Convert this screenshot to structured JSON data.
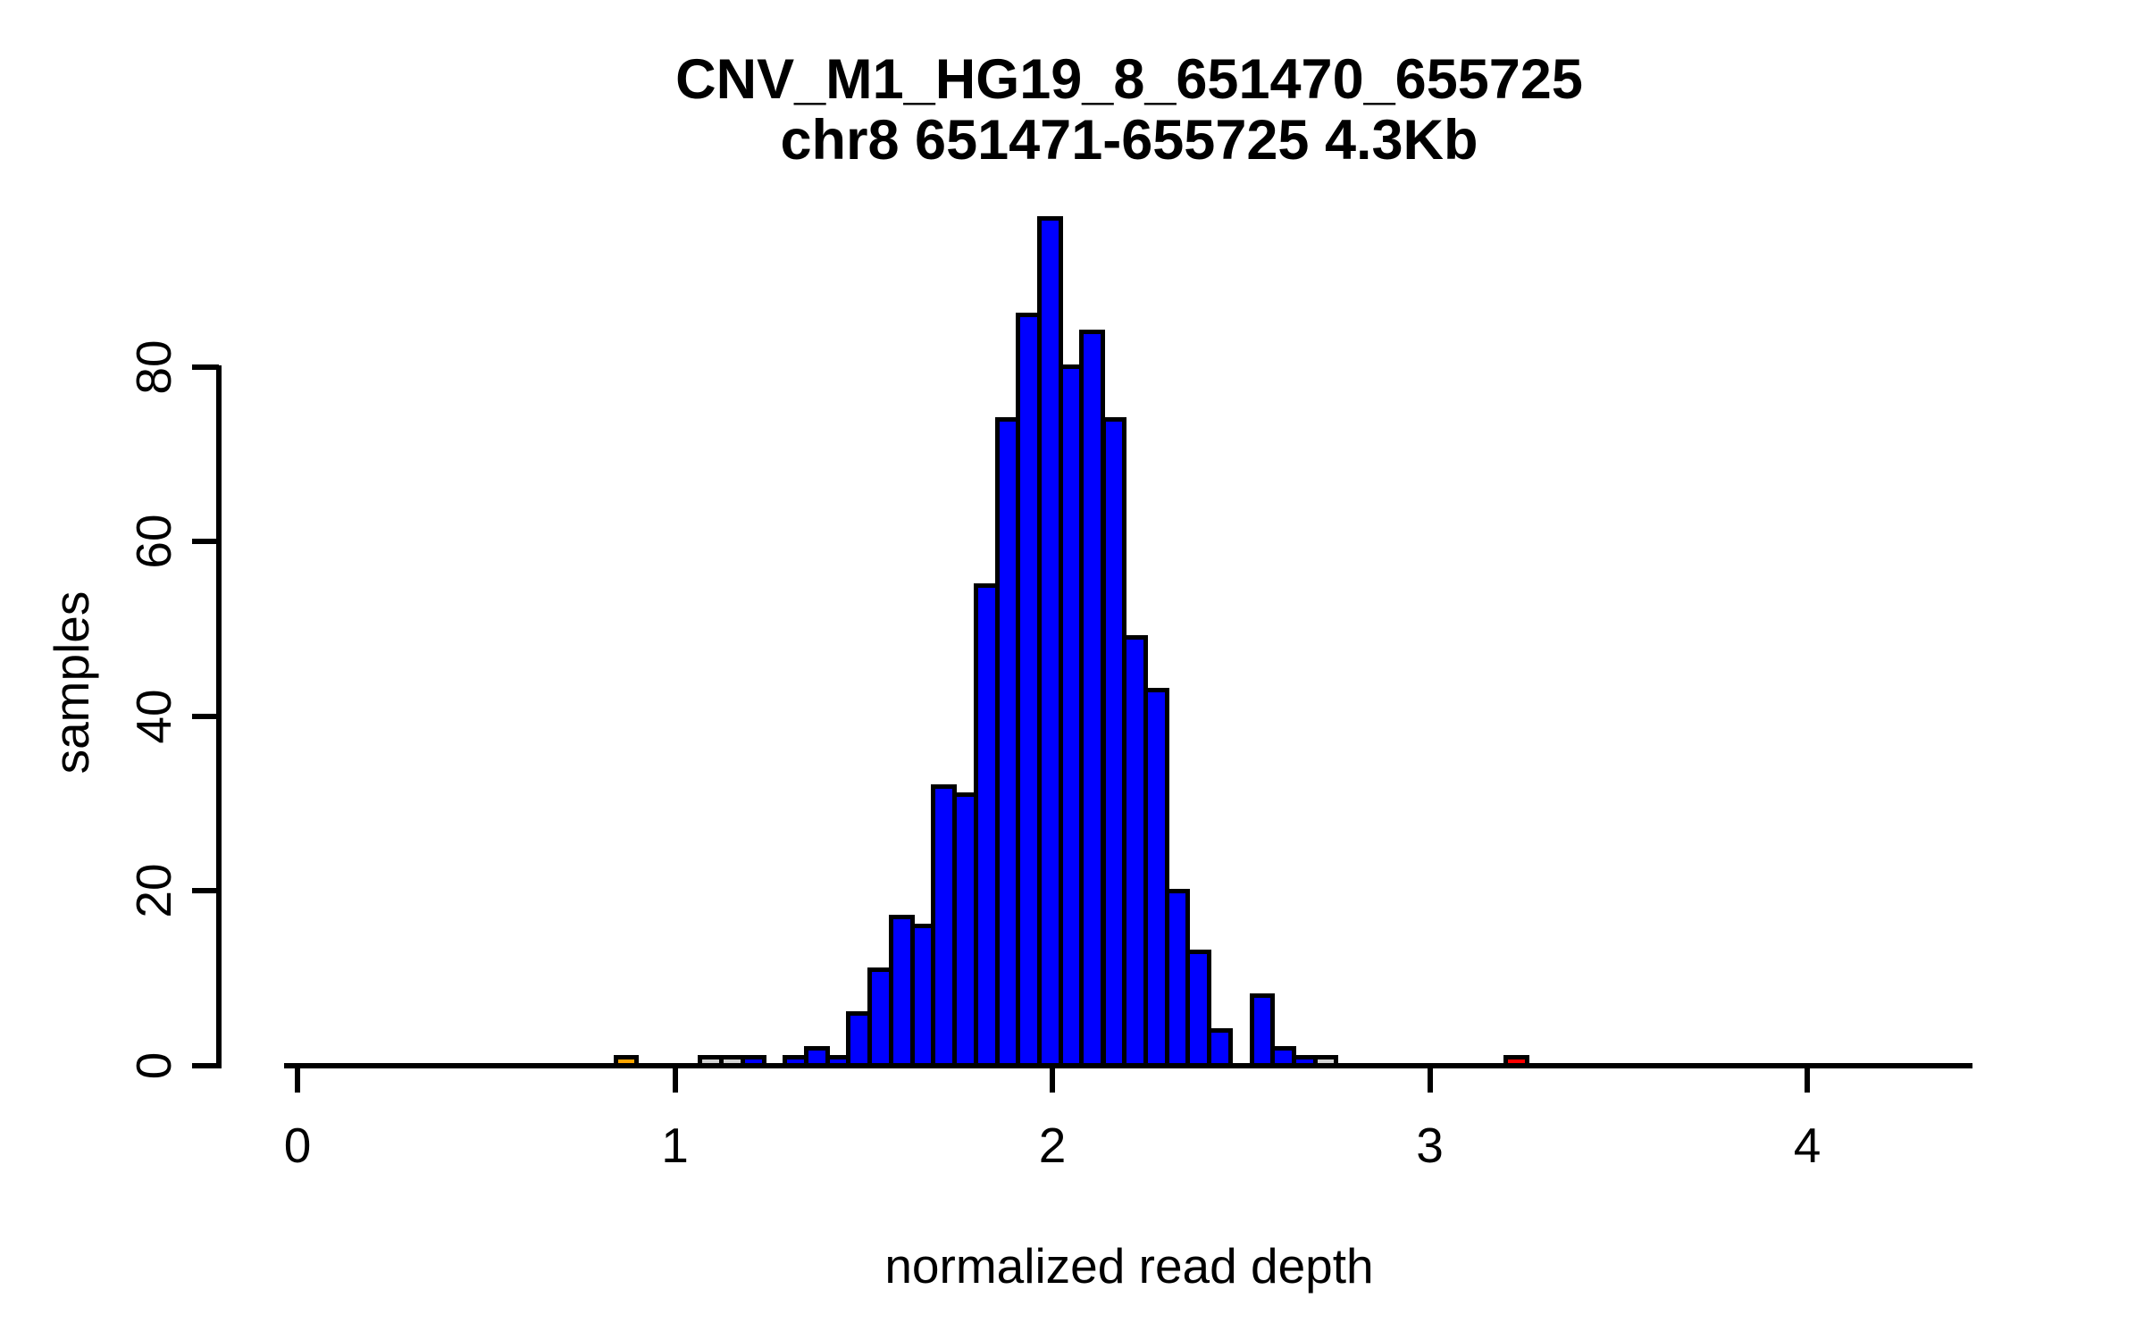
{
  "chart_data": {
    "type": "bar",
    "subtype": "histogram",
    "title": "CNV_M1_HG19_8_651470_655725",
    "subtitle": "chr8 651471-655725 4.3Kb",
    "xlabel": "normalized read depth",
    "ylabel": "samples",
    "x_tick_labels": [
      "0",
      "1",
      "2",
      "3",
      "4"
    ],
    "x_tick_values": [
      0,
      1,
      2,
      3,
      4
    ],
    "y_tick_labels": [
      "0",
      "20",
      "40",
      "60",
      "80"
    ],
    "y_tick_values": [
      0,
      20,
      40,
      60,
      80
    ],
    "xlim": [
      -0.03,
      4.44
    ],
    "ylim": [
      0,
      97
    ],
    "grid": false,
    "legend": false,
    "bin_width": 0.0562,
    "colors": {
      "default_fill": "#0000ff",
      "low_outlier_fill": "#ffa500",
      "gray_fill": "#d3d3d3",
      "high_outlier_fill": "#ff0000",
      "border": "#000000"
    },
    "bins": [
      {
        "x": 0.843,
        "count": 1,
        "fill": "#ffa500"
      },
      {
        "x": 1.067,
        "count": 1,
        "fill": "#d3d3d3"
      },
      {
        "x": 1.123,
        "count": 1,
        "fill": "#d3d3d3"
      },
      {
        "x": 1.18,
        "count": 1
      },
      {
        "x": 1.292,
        "count": 1
      },
      {
        "x": 1.348,
        "count": 2
      },
      {
        "x": 1.404,
        "count": 1
      },
      {
        "x": 1.46,
        "count": 6
      },
      {
        "x": 1.517,
        "count": 11
      },
      {
        "x": 1.573,
        "count": 17
      },
      {
        "x": 1.629,
        "count": 16
      },
      {
        "x": 1.685,
        "count": 32
      },
      {
        "x": 1.741,
        "count": 31
      },
      {
        "x": 1.798,
        "count": 55
      },
      {
        "x": 1.854,
        "count": 74
      },
      {
        "x": 1.91,
        "count": 86
      },
      {
        "x": 1.966,
        "count": 97
      },
      {
        "x": 2.022,
        "count": 80
      },
      {
        "x": 2.078,
        "count": 84
      },
      {
        "x": 2.135,
        "count": 74
      },
      {
        "x": 2.191,
        "count": 49
      },
      {
        "x": 2.247,
        "count": 43
      },
      {
        "x": 2.303,
        "count": 20
      },
      {
        "x": 2.359,
        "count": 13
      },
      {
        "x": 2.415,
        "count": 4
      },
      {
        "x": 2.528,
        "count": 8
      },
      {
        "x": 2.584,
        "count": 2
      },
      {
        "x": 2.64,
        "count": 1
      },
      {
        "x": 2.696,
        "count": 1,
        "fill": "#d3d3d3"
      },
      {
        "x": 3.202,
        "count": 1,
        "fill": "#ff0000"
      }
    ]
  }
}
